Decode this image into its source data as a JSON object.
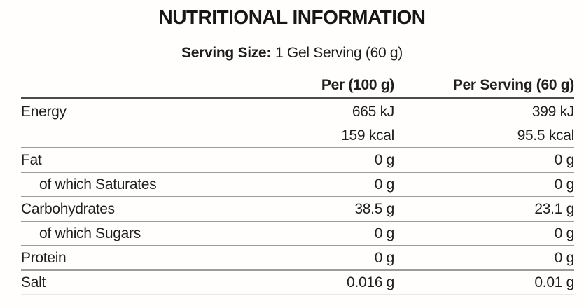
{
  "title": "NUTRITIONAL INFORMATION",
  "serving": {
    "label": "Serving Size:",
    "value": "1 Gel Serving (60 g)"
  },
  "table": {
    "columns": [
      "",
      "Per (100 g)",
      "Per Serving (60 g)"
    ],
    "rows": [
      {
        "label": "Energy",
        "per100": "665 kJ",
        "serving": "399 kJ"
      },
      {
        "label": "",
        "per100": "159 kcal",
        "serving": "95.5 kcal"
      },
      {
        "label": "Fat",
        "per100": "0 g",
        "serving": "0 g"
      },
      {
        "label": "of which Saturates",
        "per100": "0 g",
        "serving": "0 g"
      },
      {
        "label": "Carbohydrates",
        "per100": "38.5 g",
        "serving": "23.1 g"
      },
      {
        "label": "of which Sugars",
        "per100": "0 g",
        "serving": "0 g"
      },
      {
        "label": "Protein",
        "per100": "0 g",
        "serving": "0 g"
      },
      {
        "label": "Salt",
        "per100": "0.016 g",
        "serving": "0.01 g"
      }
    ]
  },
  "colors": {
    "text": "#1e1e1e",
    "separator": "#9c9c9c",
    "header_rule": "#4b4b4b",
    "background": "#fffefc"
  }
}
